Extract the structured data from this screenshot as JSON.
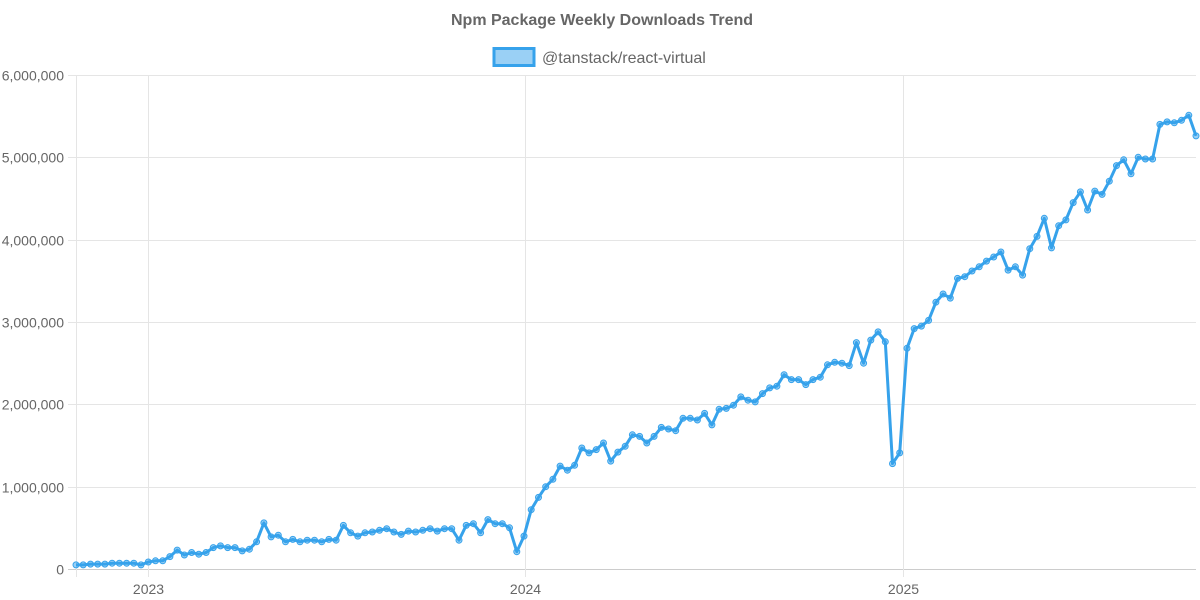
{
  "chart_data": {
    "type": "line",
    "title": "Npm Package Weekly Downloads Trend",
    "legend_position": "top",
    "grid": true,
    "ylim": [
      0,
      6000000
    ],
    "y_ticks": [
      "0",
      "1,000,000",
      "2,000,000",
      "3,000,000",
      "4,000,000",
      "5,000,000",
      "6,000,000"
    ],
    "x_ticks": [
      {
        "label": "2023",
        "date": "2023-01-01"
      },
      {
        "label": "2024",
        "date": "2024-01-01"
      },
      {
        "label": "2025",
        "date": "2025-01-01"
      }
    ],
    "xlim": [
      "2022-10-23",
      "2025-10-12"
    ],
    "series": [
      {
        "name": "@tanstack/react-virtual",
        "color": "#36a2eb",
        "fill": "rgba(54,162,235,0.5)",
        "x": [
          "2022-10-23",
          "2022-10-30",
          "2022-11-06",
          "2022-11-13",
          "2022-11-20",
          "2022-11-27",
          "2022-12-04",
          "2022-12-11",
          "2022-12-18",
          "2022-12-25",
          "2023-01-01",
          "2023-01-08",
          "2023-01-15",
          "2023-01-22",
          "2023-01-29",
          "2023-02-05",
          "2023-02-12",
          "2023-02-19",
          "2023-02-26",
          "2023-03-05",
          "2023-03-12",
          "2023-03-19",
          "2023-03-26",
          "2023-04-02",
          "2023-04-09",
          "2023-04-16",
          "2023-04-23",
          "2023-04-30",
          "2023-05-07",
          "2023-05-14",
          "2023-05-21",
          "2023-05-28",
          "2023-06-04",
          "2023-06-11",
          "2023-06-18",
          "2023-06-25",
          "2023-07-02",
          "2023-07-09",
          "2023-07-16",
          "2023-07-23",
          "2023-07-30",
          "2023-08-06",
          "2023-08-13",
          "2023-08-20",
          "2023-08-27",
          "2023-09-03",
          "2023-09-10",
          "2023-09-17",
          "2023-09-24",
          "2023-10-01",
          "2023-10-08",
          "2023-10-15",
          "2023-10-22",
          "2023-10-29",
          "2023-11-05",
          "2023-11-12",
          "2023-11-19",
          "2023-11-26",
          "2023-12-03",
          "2023-12-10",
          "2023-12-17",
          "2023-12-24",
          "2023-12-31",
          "2024-01-07",
          "2024-01-14",
          "2024-01-21",
          "2024-01-28",
          "2024-02-04",
          "2024-02-11",
          "2024-02-18",
          "2024-02-25",
          "2024-03-03",
          "2024-03-10",
          "2024-03-17",
          "2024-03-24",
          "2024-03-31",
          "2024-04-07",
          "2024-04-14",
          "2024-04-21",
          "2024-04-28",
          "2024-05-05",
          "2024-05-12",
          "2024-05-19",
          "2024-05-26",
          "2024-06-02",
          "2024-06-09",
          "2024-06-16",
          "2024-06-23",
          "2024-06-30",
          "2024-07-07",
          "2024-07-14",
          "2024-07-21",
          "2024-07-28",
          "2024-08-04",
          "2024-08-11",
          "2024-08-18",
          "2024-08-25",
          "2024-09-01",
          "2024-09-08",
          "2024-09-15",
          "2024-09-22",
          "2024-09-29",
          "2024-10-06",
          "2024-10-13",
          "2024-10-20",
          "2024-10-27",
          "2024-11-03",
          "2024-11-10",
          "2024-11-17",
          "2024-11-24",
          "2024-12-01",
          "2024-12-08",
          "2024-12-15",
          "2024-12-22",
          "2024-12-29",
          "2025-01-05",
          "2025-01-12",
          "2025-01-19",
          "2025-01-26",
          "2025-02-02",
          "2025-02-09",
          "2025-02-16",
          "2025-02-23",
          "2025-03-02",
          "2025-03-09",
          "2025-03-16",
          "2025-03-23",
          "2025-03-30",
          "2025-04-06",
          "2025-04-13",
          "2025-04-20",
          "2025-04-27",
          "2025-05-04",
          "2025-05-11",
          "2025-05-18",
          "2025-05-25",
          "2025-06-01",
          "2025-06-08",
          "2025-06-15",
          "2025-06-22",
          "2025-06-29",
          "2025-07-06",
          "2025-07-13",
          "2025-07-20",
          "2025-07-27",
          "2025-08-03",
          "2025-08-10",
          "2025-08-17",
          "2025-08-24",
          "2025-08-31",
          "2025-09-07",
          "2025-09-14",
          "2025-09-21",
          "2025-09-28",
          "2025-10-05",
          "2025-10-12"
        ],
        "values": [
          50000,
          50000,
          60000,
          60000,
          60000,
          70000,
          70000,
          70000,
          70000,
          50000,
          85000,
          100000,
          100000,
          150000,
          230000,
          170000,
          200000,
          180000,
          200000,
          260000,
          280000,
          260000,
          260000,
          220000,
          240000,
          330000,
          560000,
          390000,
          410000,
          330000,
          360000,
          330000,
          350000,
          350000,
          330000,
          360000,
          350000,
          530000,
          440000,
          400000,
          440000,
          450000,
          470000,
          490000,
          450000,
          420000,
          460000,
          450000,
          470000,
          490000,
          460000,
          490000,
          490000,
          350000,
          530000,
          550000,
          440000,
          600000,
          550000,
          550000,
          500000,
          210000,
          400000,
          720000,
          870000,
          1000000,
          1090000,
          1250000,
          1200000,
          1260000,
          1470000,
          1410000,
          1450000,
          1530000,
          1310000,
          1420000,
          1490000,
          1630000,
          1610000,
          1530000,
          1610000,
          1720000,
          1700000,
          1680000,
          1830000,
          1830000,
          1810000,
          1890000,
          1750000,
          1940000,
          1950000,
          1990000,
          2090000,
          2050000,
          2030000,
          2130000,
          2200000,
          2220000,
          2360000,
          2300000,
          2300000,
          2240000,
          2300000,
          2330000,
          2480000,
          2510000,
          2500000,
          2470000,
          2750000,
          2500000,
          2780000,
          2880000,
          2760000,
          1280000,
          1410000,
          2680000,
          2920000,
          2950000,
          3020000,
          3240000,
          3340000,
          3290000,
          3530000,
          3550000,
          3620000,
          3670000,
          3740000,
          3790000,
          3850000,
          3630000,
          3670000,
          3570000,
          3890000,
          4040000,
          4260000,
          3900000,
          4170000,
          4240000,
          4450000,
          4580000,
          4360000,
          4590000,
          4550000,
          4710000,
          4900000,
          4970000,
          4800000,
          5000000,
          4980000,
          4980000,
          5400000,
          5430000,
          5420000,
          5450000,
          5510000,
          5260000
        ]
      }
    ]
  }
}
